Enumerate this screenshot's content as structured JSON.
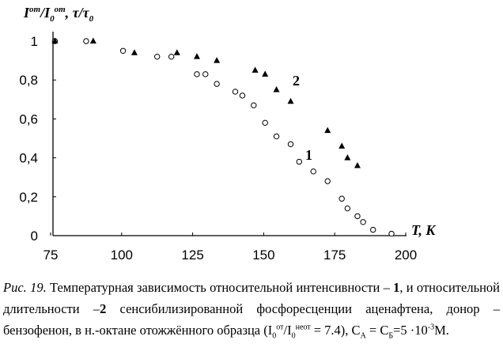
{
  "chart_data": {
    "type": "scatter",
    "y_label": [
      {
        "t": "I"
      },
      {
        "t": "от",
        "f": "sup"
      },
      {
        "t": "/I"
      },
      {
        "t": "0",
        "f": "sub"
      },
      {
        "t": "от",
        "f": "sup"
      },
      {
        "t": ", τ/τ"
      },
      {
        "t": "0",
        "f": "sub"
      }
    ],
    "x_label": "T, K",
    "xlim": [
      75,
      200
    ],
    "xticks": [
      75,
      100,
      125,
      150,
      175,
      200
    ],
    "ylim": [
      0,
      1
    ],
    "yticks": [
      0,
      {
        "value": 0.2,
        "label": "0,2"
      },
      {
        "value": 0.4,
        "label": "0,4"
      },
      {
        "value": 0.6,
        "label": "0,6"
      },
      {
        "value": 0.8,
        "label": "0,8"
      },
      1
    ],
    "grid": false,
    "series": [
      {
        "name": "1",
        "marker": "circle",
        "color": "#000000",
        "x": [
          76.5,
          87.5,
          100.5,
          112.5,
          117.5,
          126.5,
          129.5,
          133.5,
          140,
          142.5,
          146.5,
          150.5,
          154.5,
          159.5,
          162.5,
          167.5,
          172.5,
          177.5,
          179.5,
          183,
          185,
          188.5,
          195
        ],
        "values": [
          1,
          1,
          0.95,
          0.92,
          0.92,
          0.83,
          0.83,
          0.78,
          0.74,
          0.72,
          0.67,
          0.58,
          0.51,
          0.47,
          0.38,
          0.33,
          0.28,
          0.19,
          0.14,
          0.1,
          0.07,
          0.03,
          0.01
        ]
      },
      {
        "name": "2",
        "marker": "triangle",
        "color": "#000000",
        "x": [
          76.5,
          90,
          104.5,
          119.5,
          126.5,
          133.5,
          147,
          150.5,
          154.5,
          159.5,
          172.5,
          177.5,
          179.5,
          183
        ],
        "values": [
          1,
          1,
          0.94,
          0.94,
          0.92,
          0.9,
          0.85,
          0.83,
          0.75,
          0.69,
          0.54,
          0.46,
          0.4,
          0.36
        ]
      }
    ]
  },
  "caption": [
    {
      "t": "Рис. 19.",
      "f": "i"
    },
    {
      "t": " Температурная зависимость относительной интенсивности – "
    },
    {
      "t": "1",
      "f": "b"
    },
    {
      "t": ", и относительной длительности –"
    },
    {
      "t": "2",
      "f": "b"
    },
    {
      "t": " сенсибилизированной фосфоресценции аценафтена, донор – бензофенон, в н.-октане отожжённого образца (I"
    },
    {
      "t": "0",
      "f": "sub"
    },
    {
      "t": "от",
      "f": "sup"
    },
    {
      "t": "/I"
    },
    {
      "t": "0",
      "f": "sub"
    },
    {
      "t": "неот",
      "f": "sup"
    },
    {
      "t": " = 7.4), C"
    },
    {
      "t": "А",
      "f": "sub"
    },
    {
      "t": " = C"
    },
    {
      "t": "Б",
      "f": "sub"
    },
    {
      "t": "=5 ·10"
    },
    {
      "t": "-3",
      "f": "sup"
    },
    {
      "t": "M."
    }
  ]
}
